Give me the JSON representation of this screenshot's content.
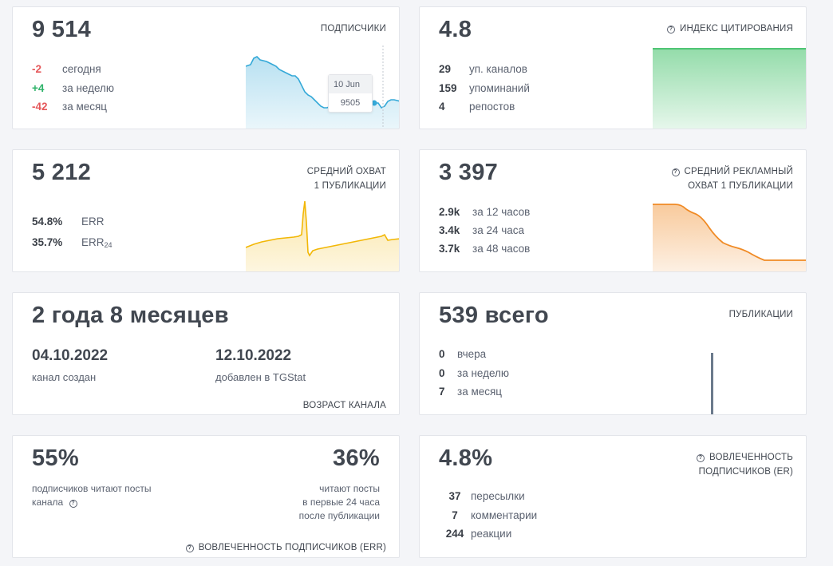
{
  "subscribers": {
    "value": "9 514",
    "title": "ПОДПИСЧИКИ",
    "rows": [
      {
        "num": "-2",
        "label": "сегодня"
      },
      {
        "num": "+4",
        "label": "за неделю"
      },
      {
        "num": "-42",
        "label": "за месяц"
      }
    ],
    "tooltip": {
      "date": "10 Jun",
      "value": "9505"
    },
    "color": "#35a9d8"
  },
  "citation": {
    "value": "4.8",
    "title": "ИНДЕКС ЦИТИРОВАНИЯ",
    "rows": [
      {
        "num": "29",
        "label": "уп. каналов"
      },
      {
        "num": "159",
        "label": "упоминаний"
      },
      {
        "num": "4",
        "label": "репостов"
      }
    ],
    "color": "#3cbf64"
  },
  "reach": {
    "value": "5 212",
    "title_line1": "СРЕДНИЙ ОХВАТ",
    "title_line2": "1 ПУБЛИКАЦИИ",
    "rows": [
      {
        "num": "54.8%",
        "label": "ERR",
        "sub": ""
      },
      {
        "num": "35.7%",
        "label": "ERR",
        "sub": "24"
      }
    ],
    "color": "#f2b705"
  },
  "ad_reach": {
    "value": "3 397",
    "title_line1": "СРЕДНИЙ РЕКЛАМНЫЙ",
    "title_line2": "ОХВАТ 1 ПУБЛИКАЦИИ",
    "rows": [
      {
        "num": "2.9k",
        "label": "за 12 часов"
      },
      {
        "num": "3.4k",
        "label": "за 24 часа"
      },
      {
        "num": "3.7k",
        "label": "за 48 часов"
      }
    ],
    "color": "#f08a24"
  },
  "age": {
    "value": "2 года 8 месяцев",
    "created_date": "04.10.2022",
    "created_label": "канал создан",
    "added_date": "12.10.2022",
    "added_label": "добавлен в TGStat",
    "title": "ВОЗРАСТ КАНАЛА"
  },
  "posts": {
    "value": "539 всего",
    "title": "ПУБЛИКАЦИИ",
    "rows": [
      {
        "num": "0",
        "label": "вчера"
      },
      {
        "num": "0",
        "label": "за неделю"
      },
      {
        "num": "7",
        "label": "за месяц"
      }
    ],
    "color": "#6b7a8c"
  },
  "err": {
    "left_value": "55%",
    "left_text_line1": "подписчиков читают посты",
    "left_text_line2": "канала",
    "right_value": "36%",
    "right_text_line1": "читают посты",
    "right_text_line2": "в первые 24 часа",
    "right_text_line3": "после публикации",
    "footer": "ВОВЛЕЧЕННОСТЬ ПОДПИСЧИКОВ (ERR)"
  },
  "er": {
    "value": "4.8%",
    "title_line1": "ВОВЛЕЧЕННОСТЬ",
    "title_line2": "ПОДПИСЧИКОВ (ER)",
    "rows": [
      {
        "num": "37",
        "label": "пересылки"
      },
      {
        "num": "7",
        "label": "комментарии"
      },
      {
        "num": "244",
        "label": "реакции"
      }
    ]
  }
}
